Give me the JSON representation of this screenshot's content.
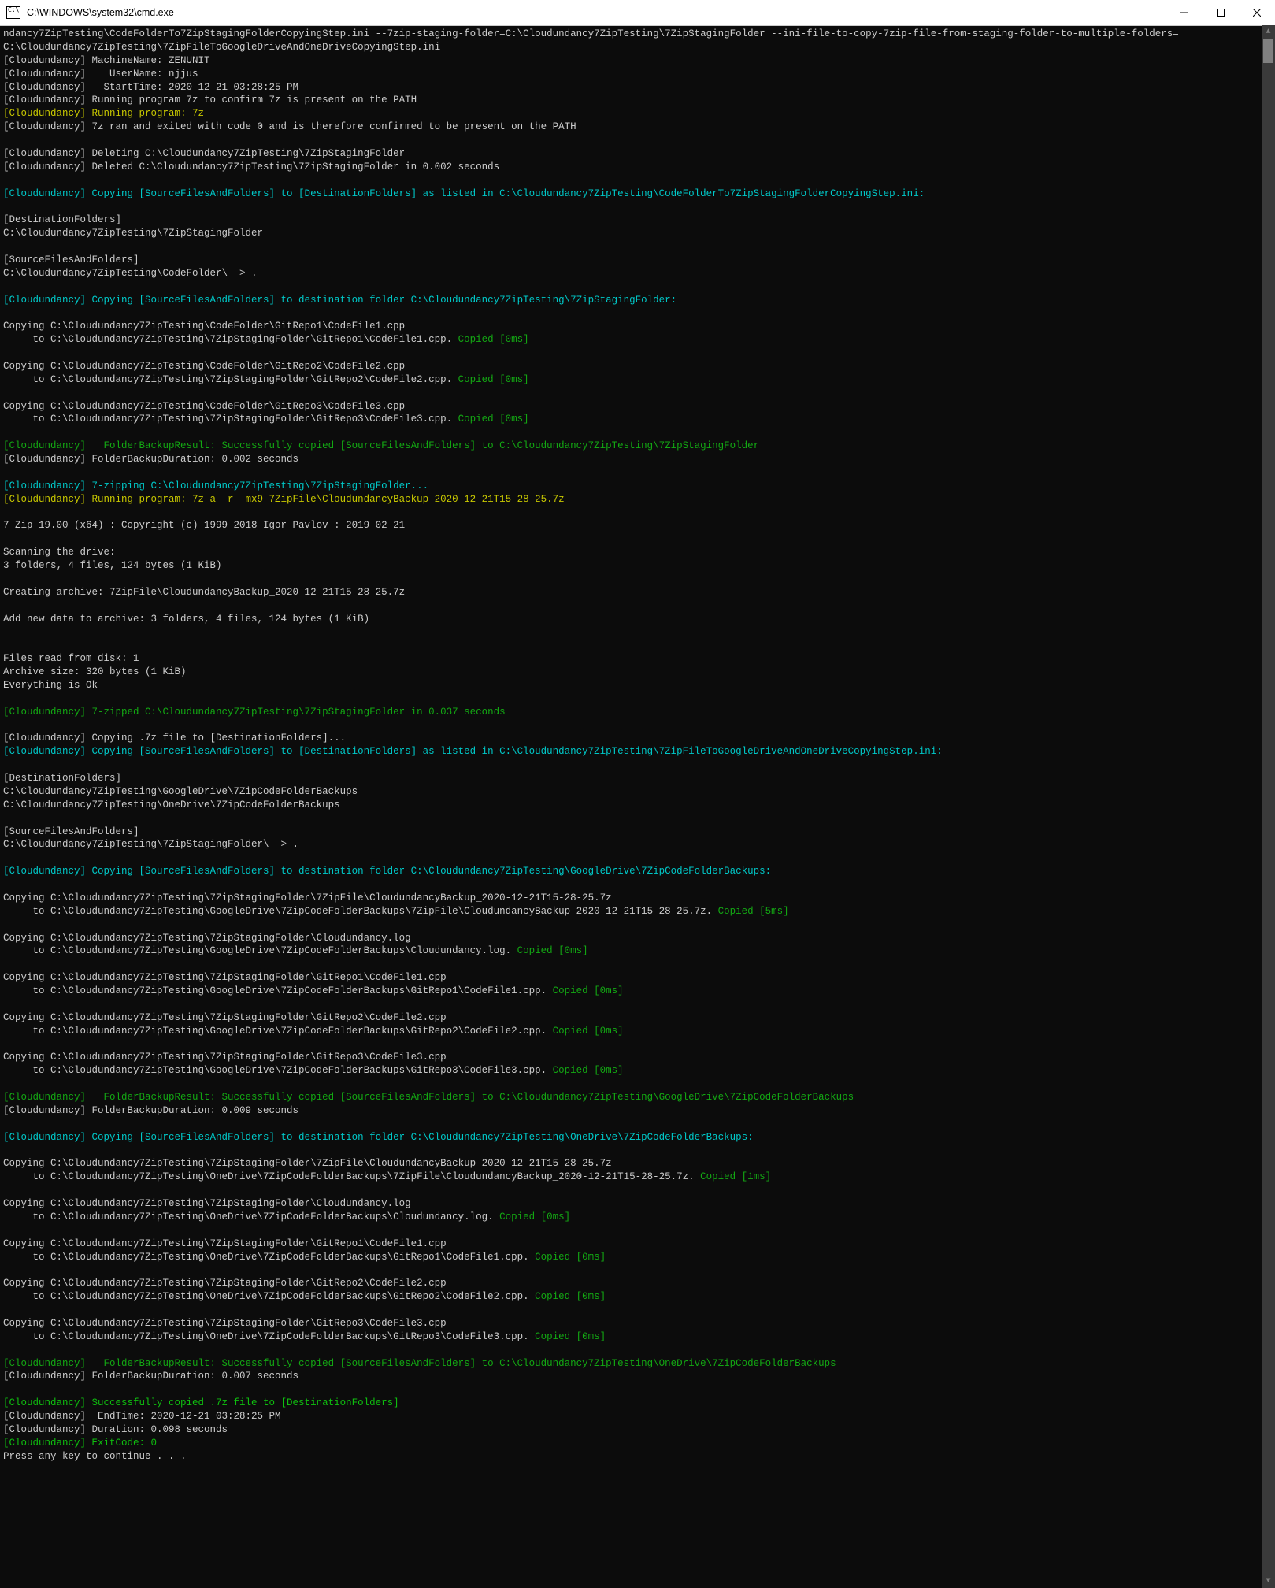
{
  "window": {
    "title": "C:\\WINDOWS\\system32\\cmd.exe"
  },
  "colors": {
    "white": "#cccccc",
    "cyan": "#00c8c8",
    "yellow": "#c8c800",
    "green": "#13a813",
    "bgreen": "#0fbf0f",
    "bg": "#0c0c0c"
  },
  "lines": [
    [
      {
        "c": "white",
        "t": "ndancy7ZipTesting\\CodeFolderTo7ZipStagingFolderCopyingStep.ini --7zip-staging-folder=C:\\Cloudundancy7ZipTesting\\7ZipStagingFolder --ini-file-to-copy-7zip-file-from-staging-folder-to-multiple-folders="
      }
    ],
    [
      {
        "c": "white",
        "t": "C:\\Cloudundancy7ZipTesting\\7ZipFileToGoogleDriveAndOneDriveCopyingStep.ini"
      }
    ],
    [
      {
        "c": "white",
        "t": "[Cloudundancy] MachineName: ZENUNIT"
      }
    ],
    [
      {
        "c": "white",
        "t": "[Cloudundancy]    UserName: njjus"
      }
    ],
    [
      {
        "c": "white",
        "t": "[Cloudundancy]   StartTime: 2020-12-21 03:28:25 PM"
      }
    ],
    [
      {
        "c": "white",
        "t": "[Cloudundancy] Running program 7z to confirm 7z is present on the PATH"
      }
    ],
    [
      {
        "c": "yellow",
        "t": "[Cloudundancy] Running program: 7z"
      }
    ],
    [
      {
        "c": "white",
        "t": "[Cloudundancy] 7z ran and exited with code 0 and is therefore confirmed to be present on the PATH"
      }
    ],
    "blank",
    [
      {
        "c": "white",
        "t": "[Cloudundancy] Deleting C:\\Cloudundancy7ZipTesting\\7ZipStagingFolder"
      }
    ],
    [
      {
        "c": "white",
        "t": "[Cloudundancy] Deleted C:\\Cloudundancy7ZipTesting\\7ZipStagingFolder in 0.002 seconds"
      }
    ],
    "blank",
    [
      {
        "c": "cyan",
        "t": "[Cloudundancy] Copying [SourceFilesAndFolders] to [DestinationFolders] as listed in C:\\Cloudundancy7ZipTesting\\CodeFolderTo7ZipStagingFolderCopyingStep.ini:"
      }
    ],
    "blank",
    [
      {
        "c": "white",
        "t": "[DestinationFolders]"
      }
    ],
    [
      {
        "c": "white",
        "t": "C:\\Cloudundancy7ZipTesting\\7ZipStagingFolder"
      }
    ],
    "blank",
    [
      {
        "c": "white",
        "t": "[SourceFilesAndFolders]"
      }
    ],
    [
      {
        "c": "white",
        "t": "C:\\Cloudundancy7ZipTesting\\CodeFolder\\ -> ."
      }
    ],
    "blank",
    [
      {
        "c": "cyan",
        "t": "[Cloudundancy] Copying [SourceFilesAndFolders] to destination folder C:\\Cloudundancy7ZipTesting\\7ZipStagingFolder:"
      }
    ],
    "blank",
    [
      {
        "c": "white",
        "t": "Copying C:\\Cloudundancy7ZipTesting\\CodeFolder\\GitRepo1\\CodeFile1.cpp"
      }
    ],
    [
      {
        "c": "white",
        "t": "     to C:\\Cloudundancy7ZipTesting\\7ZipStagingFolder\\GitRepo1\\CodeFile1.cpp. "
      },
      {
        "c": "green",
        "t": "Copied [0ms]"
      }
    ],
    "blank",
    [
      {
        "c": "white",
        "t": "Copying C:\\Cloudundancy7ZipTesting\\CodeFolder\\GitRepo2\\CodeFile2.cpp"
      }
    ],
    [
      {
        "c": "white",
        "t": "     to C:\\Cloudundancy7ZipTesting\\7ZipStagingFolder\\GitRepo2\\CodeFile2.cpp. "
      },
      {
        "c": "green",
        "t": "Copied [0ms]"
      }
    ],
    "blank",
    [
      {
        "c": "white",
        "t": "Copying C:\\Cloudundancy7ZipTesting\\CodeFolder\\GitRepo3\\CodeFile3.cpp"
      }
    ],
    [
      {
        "c": "white",
        "t": "     to C:\\Cloudundancy7ZipTesting\\7ZipStagingFolder\\GitRepo3\\CodeFile3.cpp. "
      },
      {
        "c": "green",
        "t": "Copied [0ms]"
      }
    ],
    "blank",
    [
      {
        "c": "green",
        "t": "[Cloudundancy]   FolderBackupResult: Successfully copied [SourceFilesAndFolders] to C:\\Cloudundancy7ZipTesting\\7ZipStagingFolder"
      }
    ],
    [
      {
        "c": "white",
        "t": "[Cloudundancy] FolderBackupDuration: 0.002 seconds"
      }
    ],
    "blank",
    [
      {
        "c": "cyan",
        "t": "[Cloudundancy] 7-zipping C:\\Cloudundancy7ZipTesting\\7ZipStagingFolder..."
      }
    ],
    [
      {
        "c": "yellow",
        "t": "[Cloudundancy] Running program: 7z a -r -mx9 7ZipFile\\CloudundancyBackup_2020-12-21T15-28-25.7z"
      }
    ],
    "blank",
    [
      {
        "c": "white",
        "t": "7-Zip 19.00 (x64) : Copyright (c) 1999-2018 Igor Pavlov : 2019-02-21"
      }
    ],
    "blank",
    [
      {
        "c": "white",
        "t": "Scanning the drive:"
      }
    ],
    [
      {
        "c": "white",
        "t": "3 folders, 4 files, 124 bytes (1 KiB)"
      }
    ],
    "blank",
    [
      {
        "c": "white",
        "t": "Creating archive: 7ZipFile\\CloudundancyBackup_2020-12-21T15-28-25.7z"
      }
    ],
    "blank",
    [
      {
        "c": "white",
        "t": "Add new data to archive: 3 folders, 4 files, 124 bytes (1 KiB)"
      }
    ],
    "blank",
    "blank",
    [
      {
        "c": "white",
        "t": "Files read from disk: 1"
      }
    ],
    [
      {
        "c": "white",
        "t": "Archive size: 320 bytes (1 KiB)"
      }
    ],
    [
      {
        "c": "white",
        "t": "Everything is Ok"
      }
    ],
    "blank",
    [
      {
        "c": "green",
        "t": "[Cloudundancy] 7-zipped C:\\Cloudundancy7ZipTesting\\7ZipStagingFolder in 0.037 seconds"
      }
    ],
    "blank",
    [
      {
        "c": "white",
        "t": "[Cloudundancy] Copying .7z file to [DestinationFolders]..."
      }
    ],
    [
      {
        "c": "cyan",
        "t": "[Cloudundancy] Copying [SourceFilesAndFolders] to [DestinationFolders] as listed in C:\\Cloudundancy7ZipTesting\\7ZipFileToGoogleDriveAndOneDriveCopyingStep.ini:"
      }
    ],
    "blank",
    [
      {
        "c": "white",
        "t": "[DestinationFolders]"
      }
    ],
    [
      {
        "c": "white",
        "t": "C:\\Cloudundancy7ZipTesting\\GoogleDrive\\7ZipCodeFolderBackups"
      }
    ],
    [
      {
        "c": "white",
        "t": "C:\\Cloudundancy7ZipTesting\\OneDrive\\7ZipCodeFolderBackups"
      }
    ],
    "blank",
    [
      {
        "c": "white",
        "t": "[SourceFilesAndFolders]"
      }
    ],
    [
      {
        "c": "white",
        "t": "C:\\Cloudundancy7ZipTesting\\7ZipStagingFolder\\ -> ."
      }
    ],
    "blank",
    [
      {
        "c": "cyan",
        "t": "[Cloudundancy] Copying [SourceFilesAndFolders] to destination folder C:\\Cloudundancy7ZipTesting\\GoogleDrive\\7ZipCodeFolderBackups:"
      }
    ],
    "blank",
    [
      {
        "c": "white",
        "t": "Copying C:\\Cloudundancy7ZipTesting\\7ZipStagingFolder\\7ZipFile\\CloudundancyBackup_2020-12-21T15-28-25.7z"
      }
    ],
    [
      {
        "c": "white",
        "t": "     to C:\\Cloudundancy7ZipTesting\\GoogleDrive\\7ZipCodeFolderBackups\\7ZipFile\\CloudundancyBackup_2020-12-21T15-28-25.7z. "
      },
      {
        "c": "green",
        "t": "Copied [5ms]"
      }
    ],
    "blank",
    [
      {
        "c": "white",
        "t": "Copying C:\\Cloudundancy7ZipTesting\\7ZipStagingFolder\\Cloudundancy.log"
      }
    ],
    [
      {
        "c": "white",
        "t": "     to C:\\Cloudundancy7ZipTesting\\GoogleDrive\\7ZipCodeFolderBackups\\Cloudundancy.log. "
      },
      {
        "c": "green",
        "t": "Copied [0ms]"
      }
    ],
    "blank",
    [
      {
        "c": "white",
        "t": "Copying C:\\Cloudundancy7ZipTesting\\7ZipStagingFolder\\GitRepo1\\CodeFile1.cpp"
      }
    ],
    [
      {
        "c": "white",
        "t": "     to C:\\Cloudundancy7ZipTesting\\GoogleDrive\\7ZipCodeFolderBackups\\GitRepo1\\CodeFile1.cpp. "
      },
      {
        "c": "green",
        "t": "Copied [0ms]"
      }
    ],
    "blank",
    [
      {
        "c": "white",
        "t": "Copying C:\\Cloudundancy7ZipTesting\\7ZipStagingFolder\\GitRepo2\\CodeFile2.cpp"
      }
    ],
    [
      {
        "c": "white",
        "t": "     to C:\\Cloudundancy7ZipTesting\\GoogleDrive\\7ZipCodeFolderBackups\\GitRepo2\\CodeFile2.cpp. "
      },
      {
        "c": "green",
        "t": "Copied [0ms]"
      }
    ],
    "blank",
    [
      {
        "c": "white",
        "t": "Copying C:\\Cloudundancy7ZipTesting\\7ZipStagingFolder\\GitRepo3\\CodeFile3.cpp"
      }
    ],
    [
      {
        "c": "white",
        "t": "     to C:\\Cloudundancy7ZipTesting\\GoogleDrive\\7ZipCodeFolderBackups\\GitRepo3\\CodeFile3.cpp. "
      },
      {
        "c": "green",
        "t": "Copied [0ms]"
      }
    ],
    "blank",
    [
      {
        "c": "green",
        "t": "[Cloudundancy]   FolderBackupResult: Successfully copied [SourceFilesAndFolders] to C:\\Cloudundancy7ZipTesting\\GoogleDrive\\7ZipCodeFolderBackups"
      }
    ],
    [
      {
        "c": "white",
        "t": "[Cloudundancy] FolderBackupDuration: 0.009 seconds"
      }
    ],
    "blank",
    [
      {
        "c": "cyan",
        "t": "[Cloudundancy] Copying [SourceFilesAndFolders] to destination folder C:\\Cloudundancy7ZipTesting\\OneDrive\\7ZipCodeFolderBackups:"
      }
    ],
    "blank",
    [
      {
        "c": "white",
        "t": "Copying C:\\Cloudundancy7ZipTesting\\7ZipStagingFolder\\7ZipFile\\CloudundancyBackup_2020-12-21T15-28-25.7z"
      }
    ],
    [
      {
        "c": "white",
        "t": "     to C:\\Cloudundancy7ZipTesting\\OneDrive\\7ZipCodeFolderBackups\\7ZipFile\\CloudundancyBackup_2020-12-21T15-28-25.7z. "
      },
      {
        "c": "green",
        "t": "Copied [1ms]"
      }
    ],
    "blank",
    [
      {
        "c": "white",
        "t": "Copying C:\\Cloudundancy7ZipTesting\\7ZipStagingFolder\\Cloudundancy.log"
      }
    ],
    [
      {
        "c": "white",
        "t": "     to C:\\Cloudundancy7ZipTesting\\OneDrive\\7ZipCodeFolderBackups\\Cloudundancy.log. "
      },
      {
        "c": "green",
        "t": "Copied [0ms]"
      }
    ],
    "blank",
    [
      {
        "c": "white",
        "t": "Copying C:\\Cloudundancy7ZipTesting\\7ZipStagingFolder\\GitRepo1\\CodeFile1.cpp"
      }
    ],
    [
      {
        "c": "white",
        "t": "     to C:\\Cloudundancy7ZipTesting\\OneDrive\\7ZipCodeFolderBackups\\GitRepo1\\CodeFile1.cpp. "
      },
      {
        "c": "green",
        "t": "Copied [0ms]"
      }
    ],
    "blank",
    [
      {
        "c": "white",
        "t": "Copying C:\\Cloudundancy7ZipTesting\\7ZipStagingFolder\\GitRepo2\\CodeFile2.cpp"
      }
    ],
    [
      {
        "c": "white",
        "t": "     to C:\\Cloudundancy7ZipTesting\\OneDrive\\7ZipCodeFolderBackups\\GitRepo2\\CodeFile2.cpp. "
      },
      {
        "c": "green",
        "t": "Copied [0ms]"
      }
    ],
    "blank",
    [
      {
        "c": "white",
        "t": "Copying C:\\Cloudundancy7ZipTesting\\7ZipStagingFolder\\GitRepo3\\CodeFile3.cpp"
      }
    ],
    [
      {
        "c": "white",
        "t": "     to C:\\Cloudundancy7ZipTesting\\OneDrive\\7ZipCodeFolderBackups\\GitRepo3\\CodeFile3.cpp. "
      },
      {
        "c": "green",
        "t": "Copied [0ms]"
      }
    ],
    "blank",
    [
      {
        "c": "green",
        "t": "[Cloudundancy]   FolderBackupResult: Successfully copied [SourceFilesAndFolders] to C:\\Cloudundancy7ZipTesting\\OneDrive\\7ZipCodeFolderBackups"
      }
    ],
    [
      {
        "c": "white",
        "t": "[Cloudundancy] FolderBackupDuration: 0.007 seconds"
      }
    ],
    "blank",
    [
      {
        "c": "bgreen",
        "t": "[Cloudundancy] Successfully copied .7z file to [DestinationFolders]"
      }
    ],
    [
      {
        "c": "white",
        "t": "[Cloudundancy]  EndTime: 2020-12-21 03:28:25 PM"
      }
    ],
    [
      {
        "c": "white",
        "t": "[Cloudundancy] Duration: 0.098 seconds"
      }
    ],
    [
      {
        "c": "bgreen",
        "t": "[Cloudundancy] ExitCode: 0"
      }
    ],
    [
      {
        "c": "white",
        "t": "Press any key to continue . . . _"
      }
    ]
  ]
}
